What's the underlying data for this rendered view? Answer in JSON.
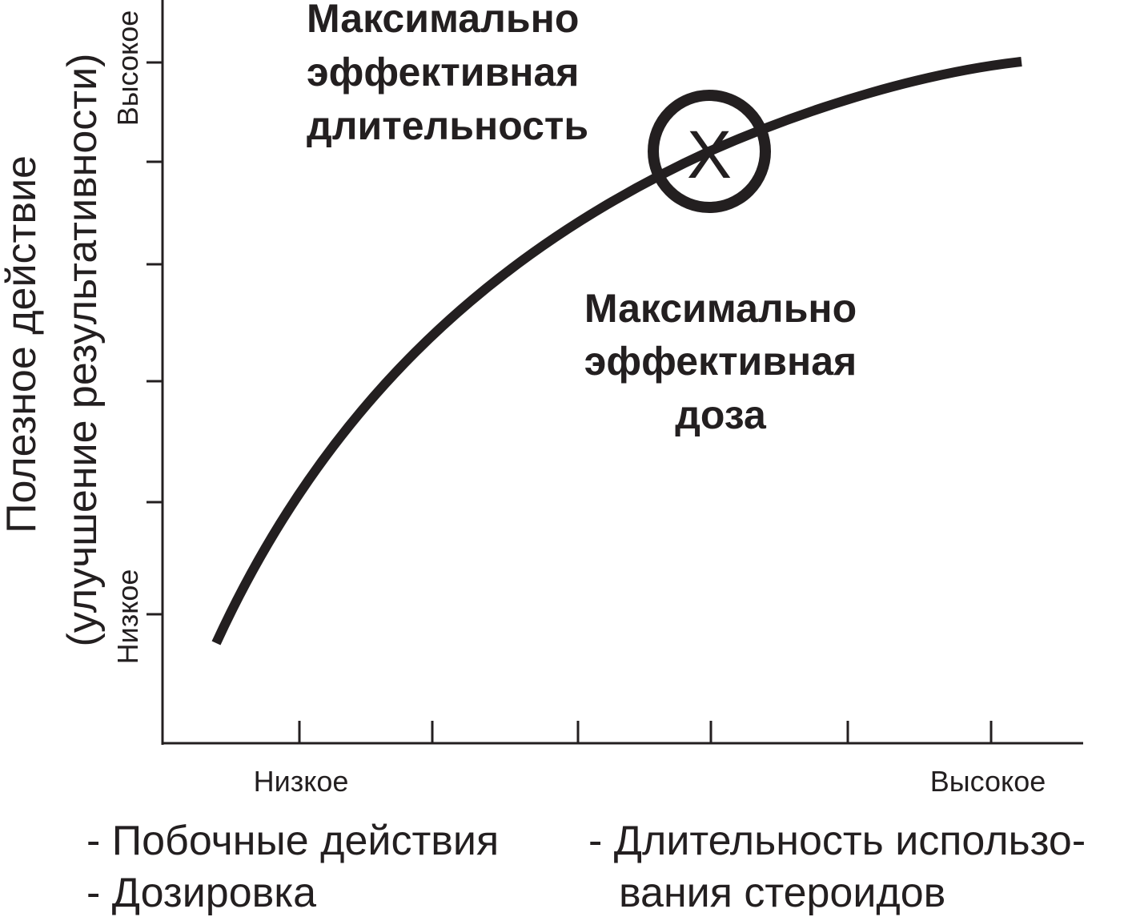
{
  "y_axis": {
    "title_lines": [
      "Полезное действие",
      "(улучшение результативности)"
    ],
    "high_label": "Высокое",
    "low_label": "Низкое"
  },
  "x_axis": {
    "low_label": "Низкое",
    "high_label": "Высокое"
  },
  "annotations": [
    {
      "lines": [
        "Максимально",
        "эффективная",
        "длительность"
      ]
    },
    {
      "lines": [
        "Максимально",
        "эффективная",
        "доза"
      ]
    }
  ],
  "marker": {
    "label": "X"
  },
  "legend": {
    "left": [
      "- Побочные действия",
      "- Дозировка"
    ],
    "right": [
      "- Длительность использо-",
      "вания стероидов"
    ]
  }
}
